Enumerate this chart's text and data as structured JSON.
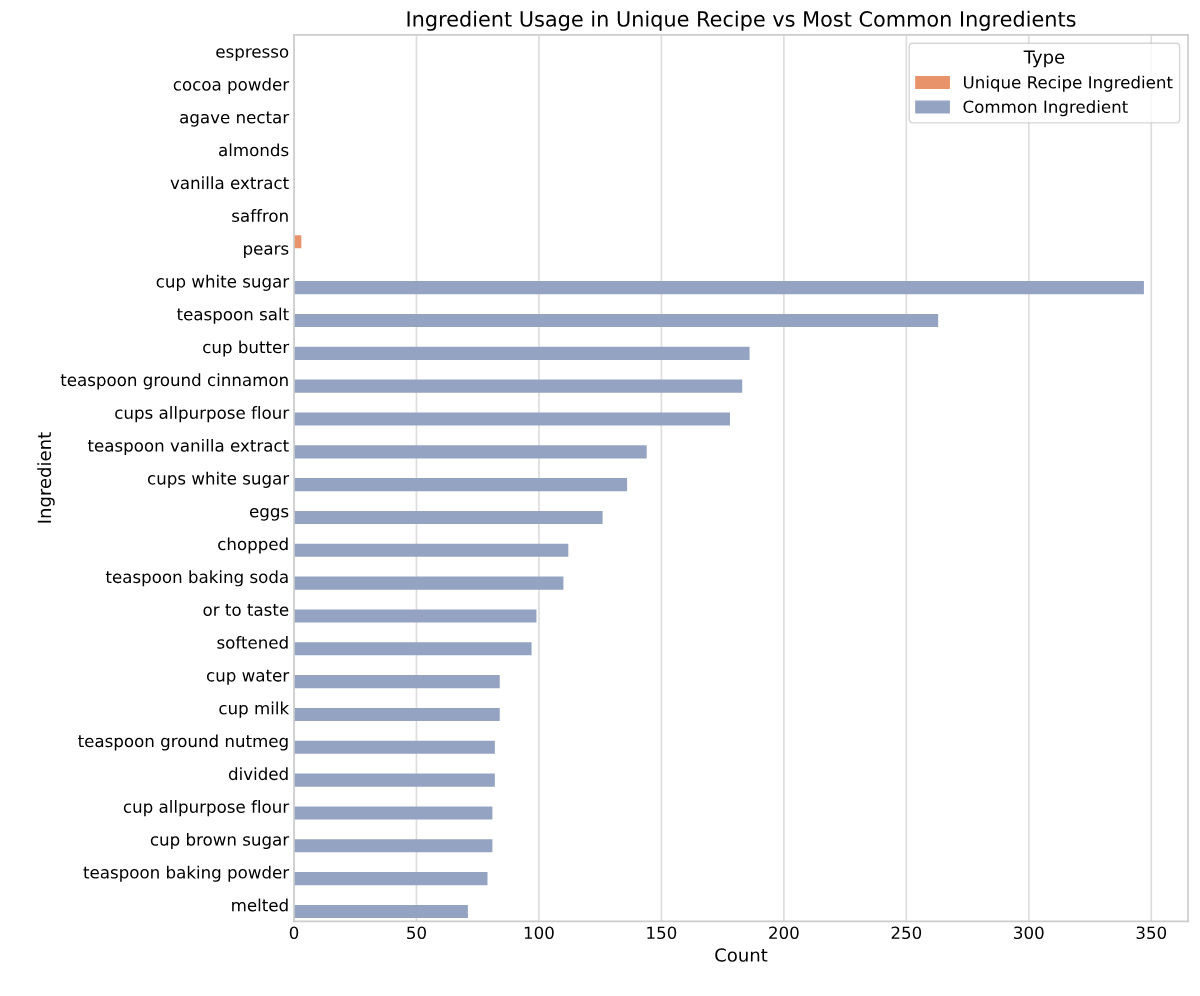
{
  "chart_data": {
    "type": "bar",
    "orientation": "horizontal",
    "title": "Ingredient Usage in Unique Recipe vs Most Common Ingredients",
    "xlabel": "Count",
    "ylabel": "Ingredient",
    "legend_title": "Type",
    "legend": "top right",
    "grid": "x",
    "categories": [
      "espresso",
      "cocoa powder",
      "agave nectar",
      "almonds",
      "vanilla extract",
      "saffron",
      "pears",
      "cup white sugar",
      "teaspoon salt",
      "cup butter",
      "teaspoon ground cinnamon",
      "cups allpurpose flour",
      "teaspoon vanilla extract",
      "cups white sugar",
      "eggs",
      "chopped",
      "teaspoon baking soda",
      "or to taste",
      "softened",
      "cup water",
      "cup milk",
      "teaspoon ground nutmeg",
      "divided",
      "cup allpurpose flour",
      "cup brown sugar",
      "teaspoon baking powder",
      "melted"
    ],
    "series": [
      {
        "name": "Unique Recipe Ingredient",
        "color": "#e8936a",
        "values": [
          0,
          0,
          0,
          null,
          0,
          0,
          3,
          null,
          null,
          null,
          null,
          null,
          null,
          null,
          null,
          null,
          null,
          null,
          null,
          null,
          null,
          null,
          null,
          null,
          null,
          null,
          null
        ]
      },
      {
        "name": "Common Ingredient",
        "color": "#95a3c3",
        "values": [
          null,
          null,
          null,
          null,
          null,
          null,
          null,
          347,
          263,
          186,
          183,
          178,
          144,
          136,
          126,
          112,
          110,
          99,
          97,
          84,
          84,
          82,
          82,
          81,
          81,
          79,
          71
        ]
      }
    ],
    "xlim": [
      0,
      365
    ],
    "xticks": [
      0,
      50,
      100,
      150,
      200,
      250,
      300,
      350
    ]
  }
}
